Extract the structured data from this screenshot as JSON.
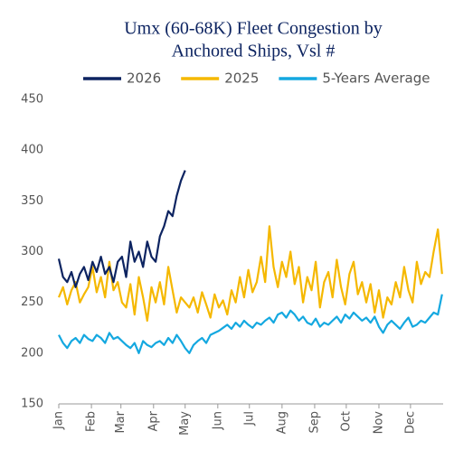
{
  "chart_data": {
    "type": "line",
    "title": [
      "Umx (60-68K) Fleet Congestion by",
      "Anchored Ships, Vsl #"
    ],
    "x": [
      1,
      5,
      9,
      13,
      17,
      21,
      25,
      29,
      33,
      37,
      41,
      45,
      49,
      53,
      57,
      61,
      65,
      69,
      73,
      77,
      81,
      85,
      89,
      93,
      97,
      101,
      105,
      109,
      113,
      117,
      121,
      125,
      129,
      133,
      137,
      141,
      145,
      149,
      153,
      157,
      161,
      165,
      169,
      173,
      177,
      181,
      185,
      189,
      193,
      197,
      201,
      205,
      209,
      213,
      217,
      221,
      225,
      229,
      233,
      237,
      241,
      245,
      249,
      253,
      257,
      261,
      265,
      269,
      273,
      277,
      281,
      285,
      289,
      293,
      297,
      301,
      305,
      309,
      313,
      317,
      321,
      325,
      329,
      333,
      337,
      341,
      345,
      349,
      353,
      357,
      361,
      365
    ],
    "series": [
      {
        "name": "2026",
        "color": "#0d2461",
        "values": [
          293,
          275,
          270,
          280,
          265,
          278,
          285,
          272,
          290,
          280,
          295,
          278,
          285,
          270,
          290,
          295,
          275,
          310,
          290,
          300,
          285,
          310,
          295,
          290,
          315,
          325,
          340,
          335,
          355,
          370,
          380,
          null,
          null,
          null,
          null,
          null,
          null,
          null,
          null,
          null,
          null,
          null,
          null,
          null,
          null,
          null,
          null,
          null,
          null,
          null,
          null,
          null,
          null,
          null,
          null,
          null,
          null,
          null,
          null,
          null,
          null,
          null,
          null,
          null,
          null,
          null,
          null,
          null,
          null,
          null,
          null,
          null,
          null,
          null,
          null,
          null,
          null,
          null,
          null,
          null,
          null,
          null,
          null,
          null,
          null,
          null,
          null,
          null,
          null,
          null,
          null,
          null
        ]
      },
      {
        "name": "2025",
        "color": "#f5b800",
        "values": [
          255,
          265,
          248,
          262,
          270,
          250,
          258,
          265,
          285,
          260,
          275,
          255,
          290,
          262,
          270,
          250,
          245,
          268,
          238,
          275,
          255,
          232,
          265,
          250,
          270,
          248,
          285,
          262,
          240,
          255,
          250,
          245,
          255,
          240,
          260,
          248,
          235,
          258,
          245,
          252,
          238,
          262,
          250,
          275,
          255,
          282,
          260,
          270,
          295,
          270,
          325,
          285,
          265,
          290,
          275,
          300,
          268,
          285,
          250,
          275,
          262,
          290,
          245,
          270,
          280,
          255,
          292,
          265,
          248,
          278,
          290,
          258,
          270,
          250,
          268,
          240,
          262,
          235,
          255,
          248,
          270,
          255,
          285,
          262,
          250,
          290,
          268,
          280,
          275,
          300,
          322,
          278
        ]
      },
      {
        "name": "5-Years Average",
        "color": "#14a8e0",
        "values": [
          218,
          210,
          205,
          212,
          215,
          210,
          218,
          214,
          212,
          218,
          215,
          210,
          220,
          214,
          216,
          212,
          208,
          205,
          210,
          200,
          212,
          208,
          206,
          210,
          212,
          208,
          215,
          210,
          218,
          212,
          205,
          200,
          208,
          212,
          215,
          210,
          218,
          220,
          222,
          225,
          228,
          224,
          230,
          226,
          232,
          228,
          225,
          230,
          228,
          232,
          235,
          230,
          238,
          240,
          235,
          242,
          238,
          232,
          236,
          230,
          228,
          234,
          226,
          230,
          228,
          232,
          236,
          230,
          238,
          234,
          240,
          236,
          232,
          235,
          230,
          236,
          226,
          220,
          228,
          232,
          228,
          224,
          230,
          235,
          226,
          228,
          232,
          230,
          235,
          240,
          238,
          258
        ]
      }
    ],
    "xlim": [
      1,
      366
    ],
    "xticks": [
      {
        "value": 1,
        "label": "Jan"
      },
      {
        "value": 32,
        "label": "Feb"
      },
      {
        "value": 60,
        "label": "Mar"
      },
      {
        "value": 91,
        "label": "Apr"
      },
      {
        "value": 121,
        "label": "May"
      },
      {
        "value": 152,
        "label": "Jun"
      },
      {
        "value": 182,
        "label": "Jul"
      },
      {
        "value": 213,
        "label": "Aug"
      },
      {
        "value": 244,
        "label": "Sep"
      },
      {
        "value": 274,
        "label": "Oct"
      },
      {
        "value": 305,
        "label": "Nov"
      },
      {
        "value": 335,
        "label": "Dec"
      }
    ],
    "ylim": [
      150,
      450
    ],
    "yticks": [
      150,
      200,
      250,
      300,
      350,
      400,
      450
    ],
    "grid": false
  }
}
